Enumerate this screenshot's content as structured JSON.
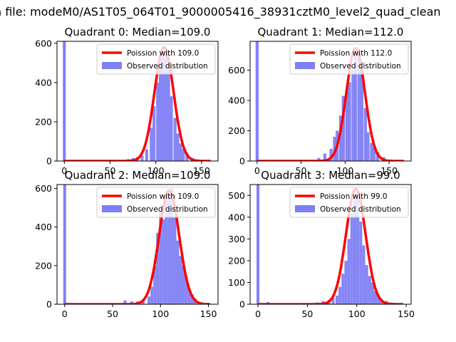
{
  "figure_title": "n file: modeM0/AS1T05_064T01_9000005416_38931cztM0_level2_quad_clean",
  "colors": {
    "histogram": "#7f7ff5",
    "poisson": "#ff0000",
    "mean_line": "#7f7fff"
  },
  "chart_data": [
    {
      "type": "bar",
      "title": "Quadrant 0: Median=109.0",
      "xlim": [
        -8,
        168
      ],
      "ylim": [
        0,
        610
      ],
      "xticks": [
        0,
        50,
        100,
        150
      ],
      "yticks": [
        0,
        200,
        400,
        600
      ],
      "grid": false,
      "legend_position": "top-right",
      "median_line_x": 0,
      "series": [
        {
          "name": "Poission with 109.0",
          "kind": "line",
          "lambda": 109.0,
          "peak": 580
        },
        {
          "name": "Observed distribution",
          "kind": "histogram",
          "bin_width": 3.25,
          "bins": [
            [
              0,
              610
            ],
            [
              65,
              5
            ],
            [
              70,
              10
            ],
            [
              75,
              15
            ],
            [
              80,
              20
            ],
            [
              85,
              30
            ],
            [
              90,
              60
            ],
            [
              95,
              170
            ],
            [
              98,
              280
            ],
            [
              102,
              400
            ],
            [
              105,
              520
            ],
            [
              108,
              560
            ],
            [
              111,
              580
            ],
            [
              114,
              470
            ],
            [
              117,
              330
            ],
            [
              121,
              220
            ],
            [
              124,
              140
            ],
            [
              127,
              90
            ],
            [
              130,
              60
            ],
            [
              134,
              40
            ],
            [
              140,
              15
            ],
            [
              146,
              8
            ],
            [
              152,
              3
            ]
          ]
        }
      ]
    },
    {
      "type": "bar",
      "title": "Quadrant 1: Median=112.0",
      "xlim": [
        -8,
        175
      ],
      "ylim": [
        0,
        790
      ],
      "xticks": [
        0,
        50,
        100,
        150
      ],
      "yticks": [
        0,
        200,
        400,
        600
      ],
      "grid": false,
      "legend_position": "top-right",
      "median_line_x": 0,
      "series": [
        {
          "name": "Poission with 112.0",
          "kind": "line",
          "lambda": 112.0,
          "peak": 745
        },
        {
          "name": "Observed distribution",
          "kind": "histogram",
          "bin_width": 3.5,
          "bins": [
            [
              0,
              790
            ],
            [
              70,
              20
            ],
            [
              77,
              50
            ],
            [
              84,
              80
            ],
            [
              88,
              160
            ],
            [
              91,
              200
            ],
            [
              95,
              300
            ],
            [
              98,
              430
            ],
            [
              102,
              470
            ],
            [
              105,
              520
            ],
            [
              109,
              600
            ],
            [
              112,
              730
            ],
            [
              116,
              720
            ],
            [
              119,
              590
            ],
            [
              123,
              350
            ],
            [
              126,
              190
            ],
            [
              130,
              120
            ],
            [
              133,
              90
            ],
            [
              137,
              60
            ],
            [
              144,
              25
            ],
            [
              151,
              10
            ],
            [
              158,
              5
            ]
          ]
        }
      ]
    },
    {
      "type": "bar",
      "title": "Quadrant 2: Median=109.0",
      "xlim": [
        -8,
        160
      ],
      "ylim": [
        0,
        620
      ],
      "xticks": [
        0,
        50,
        100,
        150
      ],
      "yticks": [
        0,
        200,
        400,
        600
      ],
      "grid": false,
      "legend_position": "top-right",
      "median_line_x": 0,
      "series": [
        {
          "name": "Poission with 109.0",
          "kind": "line",
          "lambda": 109.0,
          "peak": 590
        },
        {
          "name": "Observed distribution",
          "kind": "histogram",
          "bin_width": 3.0,
          "bins": [
            [
              0,
              620
            ],
            [
              63,
              20
            ],
            [
              70,
              15
            ],
            [
              76,
              15
            ],
            [
              82,
              25
            ],
            [
              88,
              40
            ],
            [
              91,
              90
            ],
            [
              94,
              200
            ],
            [
              97,
              370
            ],
            [
              100,
              480
            ],
            [
              103,
              440
            ],
            [
              106,
              560
            ],
            [
              109,
              580
            ],
            [
              112,
              600
            ],
            [
              115,
              450
            ],
            [
              118,
              330
            ],
            [
              121,
              250
            ],
            [
              124,
              200
            ],
            [
              127,
              140
            ],
            [
              130,
              80
            ],
            [
              133,
              50
            ],
            [
              136,
              30
            ],
            [
              142,
              10
            ],
            [
              148,
              5
            ]
          ]
        }
      ]
    },
    {
      "type": "bar",
      "title": "Quadrant 3: Median=99.0",
      "xlim": [
        -8,
        155
      ],
      "ylim": [
        0,
        550
      ],
      "xticks": [
        0,
        50,
        100,
        150
      ],
      "yticks": [
        0,
        100,
        200,
        300,
        400,
        500
      ],
      "grid": false,
      "legend_position": "top-right",
      "median_line_x": 0,
      "series": [
        {
          "name": "Poission with 99.0",
          "kind": "line",
          "lambda": 99.0,
          "peak": 530
        },
        {
          "name": "Observed distribution",
          "kind": "histogram",
          "bin_width": 3.0,
          "bins": [
            [
              0,
              550
            ],
            [
              10,
              10
            ],
            [
              60,
              8
            ],
            [
              66,
              15
            ],
            [
              72,
              20
            ],
            [
              76,
              30
            ],
            [
              80,
              40
            ],
            [
              83,
              80
            ],
            [
              86,
              140
            ],
            [
              89,
              200
            ],
            [
              92,
              300
            ],
            [
              95,
              420
            ],
            [
              98,
              510
            ],
            [
              101,
              520
            ],
            [
              104,
              380
            ],
            [
              107,
              270
            ],
            [
              110,
              180
            ],
            [
              113,
              130
            ],
            [
              116,
              100
            ],
            [
              119,
              60
            ],
            [
              122,
              40
            ],
            [
              125,
              25
            ],
            [
              130,
              15
            ],
            [
              135,
              8
            ],
            [
              140,
              5
            ]
          ]
        }
      ]
    }
  ]
}
